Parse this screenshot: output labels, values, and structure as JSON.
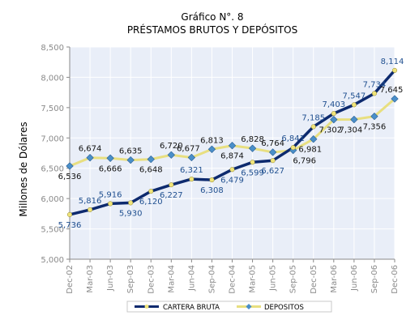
{
  "chart_data": {
    "type": "line",
    "title": "Gráfico N°. 8",
    "subtitle": "PRÉSTAMOS BRUTOS Y DEPÓSITOS",
    "ylabel": "Millones de Dólares",
    "xlabel": "",
    "ylim": [
      5000,
      8500
    ],
    "yticks": [
      "5,000",
      "5,500",
      "6,000",
      "6,500",
      "7,000",
      "7,500",
      "8,000",
      "8,500"
    ],
    "grid": true,
    "legend_position": "bottom",
    "categories": [
      "Dec-02",
      "Mar-03",
      "Jun-03",
      "Sep-03",
      "Dec-03",
      "Mar-04",
      "Jun-04",
      "Sep-04",
      "Dec-04",
      "Mar-05",
      "Jun-05",
      "Sep-05",
      "Dec-05",
      "Mar-06",
      "Jun-06",
      "Sep-06",
      "Dec-06"
    ],
    "series": [
      {
        "name": "CARTERA BRUTA",
        "color": "#0d2a6e",
        "marker_color": "#f0e47a",
        "values": [
          5736,
          5816,
          5916,
          5930,
          6120,
          6227,
          6321,
          6308,
          6479,
          6599,
          6627,
          6841,
          7185,
          7403,
          7547,
          7734,
          8114
        ],
        "labels": [
          "5,736",
          "5,816",
          "5,916",
          "5,930",
          "6,120",
          "6,227",
          "6,321",
          "6,308",
          "6,479",
          "6,599",
          "6,627",
          "6,841",
          "7,185",
          "7,403",
          "7,547",
          "7,734",
          "8,114"
        ],
        "label_color": "#1f4f8f"
      },
      {
        "name": "DEPOSITOS",
        "color": "#e8df80",
        "marker_color": "#4a8fc9",
        "values": [
          6536,
          6674,
          6666,
          6635,
          6648,
          6720,
          6677,
          6813,
          6874,
          6828,
          6764,
          6796,
          6981,
          7302,
          7304,
          7356,
          7645
        ],
        "labels": [
          "6,536",
          "6,674",
          "6,666",
          "6,635",
          "6,648",
          "6,720",
          "6,677",
          "6,813",
          "6,874",
          "6,828",
          "6,764",
          "6,796",
          "6,981",
          "7,302",
          "7,304",
          "7,356",
          "7,645"
        ],
        "label_color": "#111111"
      }
    ]
  }
}
